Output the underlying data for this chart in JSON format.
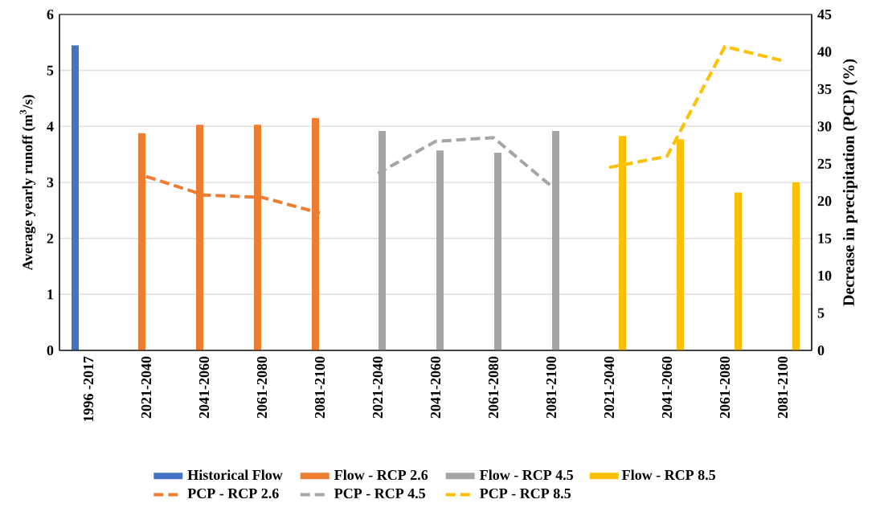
{
  "chart_data": {
    "type": "bar",
    "xlabel": null,
    "ylabel": "Average yearly runoff (m$^{3}$/s)",
    "y2label": "Decrease in precipitation (PCP) (%)",
    "categories": [
      "1996 -2017",
      "2021-2040",
      "2041-2060",
      "2061-2080",
      "2081-2100",
      "2021-2040",
      "2041-2060",
      "2061-2080",
      "2081-2100",
      "2021-2040",
      "2041-2060",
      "2061-2080",
      "2081-2100"
    ],
    "ylim": [
      0,
      6
    ],
    "yticks": [
      0,
      1,
      2,
      3,
      4,
      5,
      6
    ],
    "y2lim": [
      0,
      45
    ],
    "y2ticks": [
      0,
      5,
      10,
      15,
      20,
      25,
      30,
      35,
      40,
      45
    ],
    "grid": "y",
    "legend": "bottom",
    "series": [
      {
        "name": "Historical Flow",
        "color": "#4472c4",
        "values": [
          5.45,
          null,
          null,
          null,
          null,
          null,
          null,
          null,
          null,
          null,
          null,
          null,
          null
        ]
      },
      {
        "name": "Flow - RCP 2.6",
        "color": "#ed7d31",
        "values": [
          null,
          3.88,
          4.03,
          4.03,
          4.15,
          null,
          null,
          null,
          null,
          null,
          null,
          null,
          null
        ]
      },
      {
        "name": "Flow - RCP 4.5",
        "color": "#a5a5a5",
        "values": [
          null,
          null,
          null,
          null,
          null,
          3.92,
          3.57,
          3.53,
          3.92,
          null,
          null,
          null,
          null
        ]
      },
      {
        "name": "Flow - RCP 8.5",
        "color": "#ffc000",
        "values": [
          null,
          null,
          null,
          null,
          null,
          null,
          null,
          null,
          null,
          3.83,
          3.77,
          2.82,
          3.0
        ]
      },
      {
        "name": "PCP - RCP 2.6",
        "type": "line",
        "axis": "y2",
        "line_style": "dashed",
        "color": "#ed7d31",
        "values": [
          null,
          23.3,
          20.8,
          20.5,
          18.4,
          null,
          null,
          null,
          null,
          null,
          null,
          null,
          null
        ]
      },
      {
        "name": "PCP - RCP 4.5",
        "type": "line",
        "axis": "y2",
        "line_style": "dashed",
        "color": "#a5a5a5",
        "values": [
          null,
          null,
          null,
          null,
          null,
          23.7,
          28.0,
          28.5,
          22.0,
          null,
          null,
          null,
          null
        ]
      },
      {
        "name": "PCP - RCP 8.5",
        "type": "line",
        "axis": "y2",
        "line_style": "dashed",
        "color": "#ffc000",
        "values": [
          null,
          null,
          null,
          null,
          null,
          null,
          null,
          null,
          null,
          24.5,
          26.0,
          40.7,
          38.8
        ]
      }
    ]
  }
}
